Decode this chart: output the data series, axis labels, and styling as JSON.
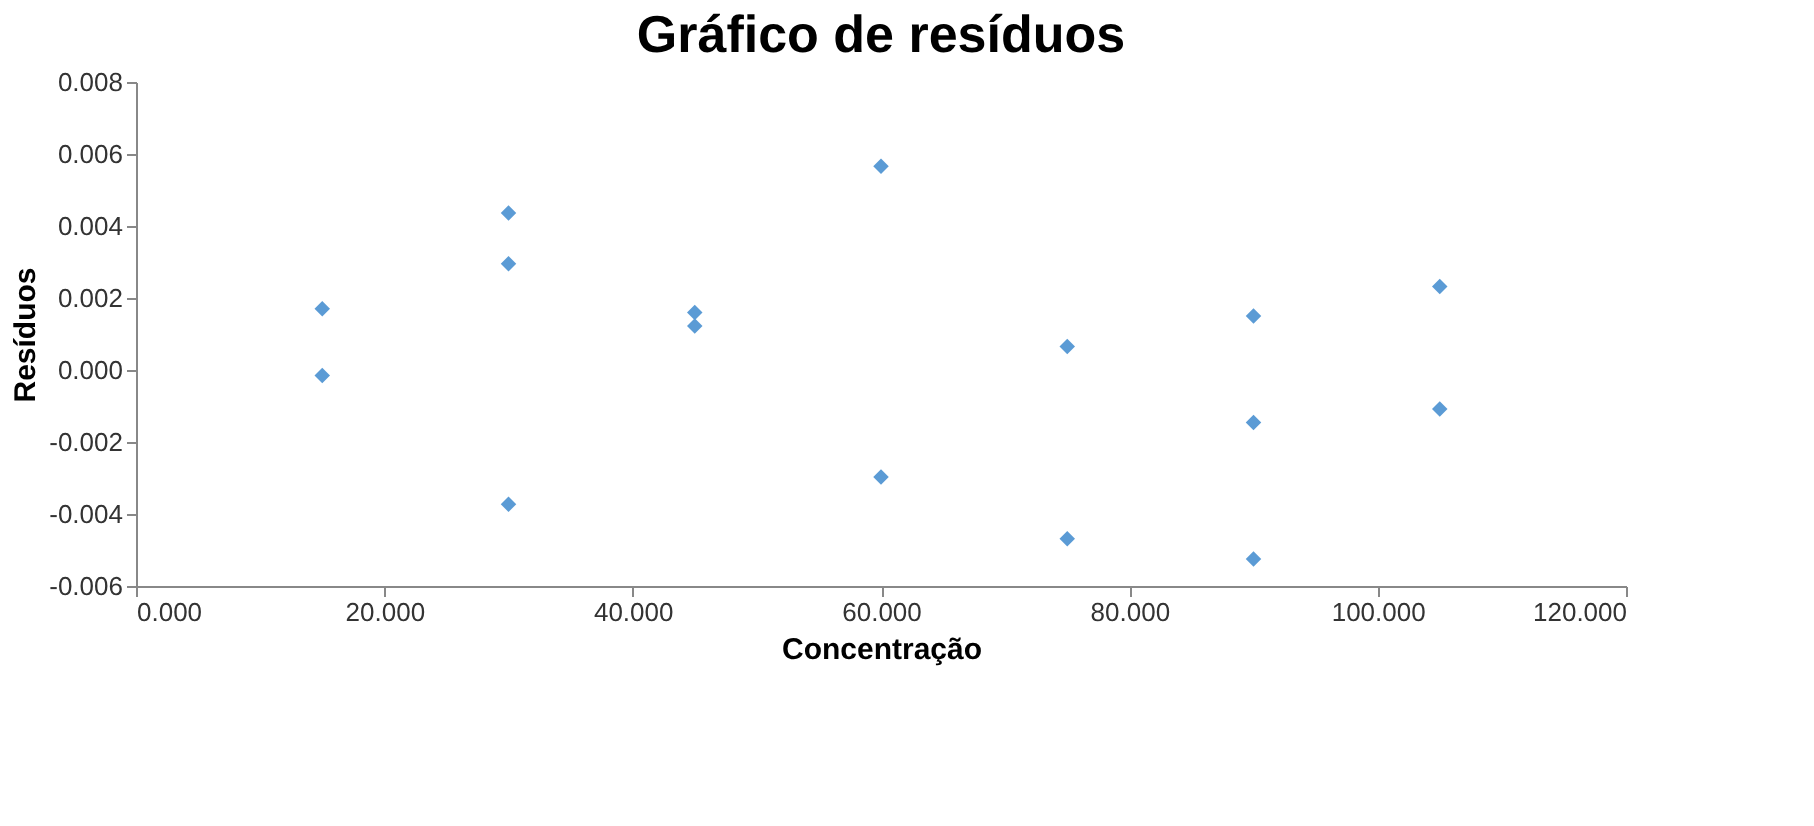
{
  "chart_data": {
    "type": "scatter",
    "title": "Gráfico de resíduos",
    "xlabel": "Concentração",
    "ylabel": "Resíduos",
    "series": [
      {
        "color": "#5b9bd5",
        "x": [
          15,
          15,
          30,
          30,
          30,
          45,
          45,
          60,
          60,
          75,
          75,
          90,
          90,
          90,
          105,
          105
        ],
        "values": [
          0.0017,
          -0.00015,
          0.00436,
          0.00295,
          -0.00373,
          0.0016,
          0.00122,
          0.00566,
          -0.00297,
          0.00065,
          -0.00469,
          0.0015,
          -0.00146,
          -0.00525,
          0.00232,
          -0.00108
        ]
      }
    ],
    "xlim": [
      0,
      120
    ],
    "ylim": [
      -0.006,
      0.008
    ],
    "xticks": [
      {
        "value": 0,
        "label": "0.000"
      },
      {
        "value": 20,
        "label": "20.000"
      },
      {
        "value": 40,
        "label": "40.000"
      },
      {
        "value": 60,
        "label": "60.000"
      },
      {
        "value": 80,
        "label": "80.000"
      },
      {
        "value": 100,
        "label": "100.000"
      },
      {
        "value": 120,
        "label": "120.000"
      }
    ],
    "yticks": [
      -0.006,
      -0.004,
      -0.002,
      {
        "value": 0,
        "label": "0.000"
      },
      0.002,
      0.004,
      0.006,
      0.008
    ],
    "marker": "diamond",
    "grid": false,
    "legend": false
  }
}
